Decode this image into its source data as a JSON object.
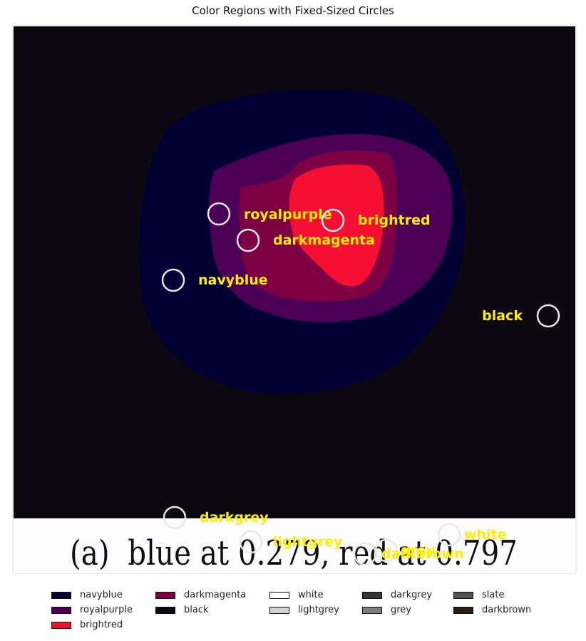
{
  "chart_data": {
    "type": "image-segmentation",
    "title": "Color Regions with Fixed-Sized Circles",
    "photo_caption": "(a)  blue at 0.279, red at 0.797",
    "markers": [
      {
        "label": "royalpurple"
      },
      {
        "label": "brightred"
      },
      {
        "label": "darkmagenta"
      },
      {
        "label": "navyblue"
      },
      {
        "label": "black"
      },
      {
        "label": "darkgrey"
      },
      {
        "label": "lightgrey"
      },
      {
        "label": "white"
      },
      {
        "label": "grey"
      },
      {
        "label": "darkbrown"
      }
    ],
    "legend": [
      {
        "label": "navyblue",
        "color": "#000033"
      },
      {
        "label": "royalpurple",
        "color": "#4b0055"
      },
      {
        "label": "brightred",
        "color": "#f51033"
      },
      {
        "label": "darkmagenta",
        "color": "#7d0045"
      },
      {
        "label": "black",
        "color": "#0b0810"
      },
      {
        "label": "white",
        "color": "#ffffff"
      },
      {
        "label": "lightgrey",
        "color": "#d3d3d3"
      },
      {
        "label": "darkgrey",
        "color": "#353535"
      },
      {
        "label": "grey",
        "color": "#7f7f7f"
      },
      {
        "label": "slate",
        "color": "#4a545a"
      },
      {
        "label": "darkbrown",
        "color": "#2e1c14"
      }
    ],
    "region_colors": {
      "background": "#0b0810",
      "outer_disc": "#000033",
      "purple_ring": "#4b0055",
      "magenta_band": "#7d0045",
      "red_core": "#f51033",
      "caption_strip": "#fdfcfe"
    },
    "marker_label_color": "#ffee00",
    "marker_circle_color": "#e8e8e8"
  }
}
